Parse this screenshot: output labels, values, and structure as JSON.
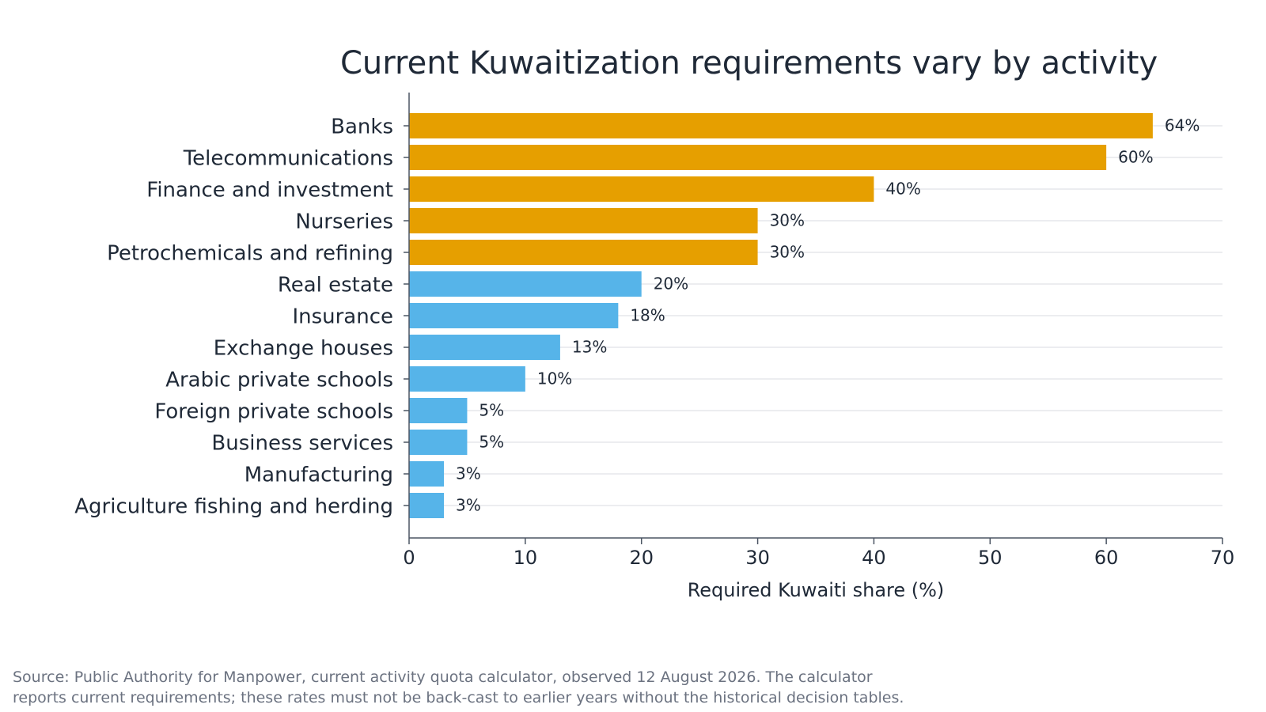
{
  "chart_data": {
    "type": "bar",
    "orientation": "horizontal",
    "title": "Current Kuwaitization requirements vary by activity",
    "xlabel": "Required Kuwaiti share (%)",
    "ylabel": "",
    "xlim": [
      0,
      70
    ],
    "xticks": [
      "0",
      "10",
      "20",
      "30",
      "40",
      "50",
      "60",
      "70"
    ],
    "grid": "horizontal",
    "categories": [
      "Banks",
      "Telecommunications",
      "Finance and investment",
      "Nurseries",
      "Petrochemicals and refining",
      "Real estate",
      "Insurance",
      "Exchange houses",
      "Arabic private schools",
      "Foreign private schools",
      "Business services",
      "Manufacturing",
      "Agriculture fishing and herding"
    ],
    "values": [
      64,
      60,
      40,
      30,
      30,
      20,
      18,
      13,
      10,
      5,
      5,
      3,
      3
    ],
    "data_labels": [
      "64%",
      "60%",
      "40%",
      "30%",
      "30%",
      "20%",
      "18%",
      "13%",
      "10%",
      "5%",
      "5%",
      "3%",
      "3%"
    ],
    "bar_colors": [
      "#e69f00",
      "#e69f00",
      "#e69f00",
      "#e69f00",
      "#e69f00",
      "#56b4e9",
      "#56b4e9",
      "#56b4e9",
      "#56b4e9",
      "#56b4e9",
      "#56b4e9",
      "#56b4e9",
      "#56b4e9"
    ]
  },
  "source": {
    "line1": "Source: Public Authority for Manpower, current activity quota calculator, observed 12 August 2026. The calculator",
    "line2": "reports current requirements; these rates must not be back-cast to earlier years without the historical decision tables."
  },
  "colors": {
    "high": "#e69f00",
    "low": "#56b4e9",
    "text": "#1f2937",
    "axis": "#4b5563",
    "grid": "#e5e7eb",
    "source": "#6b7280"
  }
}
